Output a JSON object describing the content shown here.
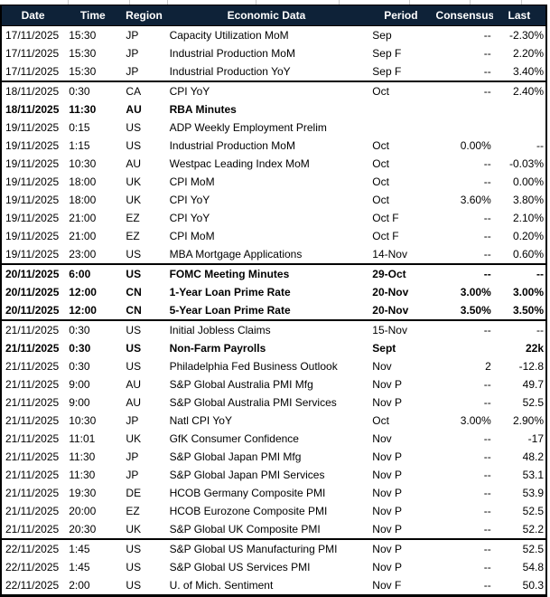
{
  "colors": {
    "header_bg": "#0E2238",
    "header_text": "#FFFFFF",
    "border": "#000000",
    "body_text": "#000000"
  },
  "chart_data": {
    "type": "table",
    "columns": [
      "Date",
      "Time",
      "Region",
      "Economic Data",
      "Period",
      "Consensus",
      "Last"
    ],
    "row_keys": [
      "date",
      "time",
      "region",
      "event",
      "period",
      "consensus",
      "last"
    ],
    "rows": [
      {
        "date": "17/11/2025",
        "time": "15:30",
        "region": "JP",
        "event": "Capacity Utilization MoM",
        "period": "Sep",
        "consensus": "--",
        "last": "-2.30%",
        "bold": false,
        "group_start": false
      },
      {
        "date": "17/11/2025",
        "time": "15:30",
        "region": "JP",
        "event": "Industrial Production MoM",
        "period": "Sep F",
        "consensus": "--",
        "last": "2.20%",
        "bold": false,
        "group_start": false
      },
      {
        "date": "17/11/2025",
        "time": "15:30",
        "region": "JP",
        "event": "Industrial Production YoY",
        "period": "Sep F",
        "consensus": "--",
        "last": "3.40%",
        "bold": false,
        "group_start": false
      },
      {
        "date": "18/11/2025",
        "time": "0:30",
        "region": "CA",
        "event": "CPI YoY",
        "period": "Oct",
        "consensus": "--",
        "last": "2.40%",
        "bold": false,
        "group_start": true
      },
      {
        "date": "18/11/2025",
        "time": "11:30",
        "region": "AU",
        "event": "RBA Minutes",
        "period": "",
        "consensus": "",
        "last": "",
        "bold": true,
        "group_start": false
      },
      {
        "date": "19/11/2025",
        "time": "0:15",
        "region": "US",
        "event": "ADP Weekly Employment Prelim",
        "period": "",
        "consensus": "",
        "last": "",
        "bold": false,
        "group_start": false
      },
      {
        "date": "19/11/2025",
        "time": "1:15",
        "region": "US",
        "event": "Industrial Production MoM",
        "period": "Oct",
        "consensus": "0.00%",
        "last": "--",
        "bold": false,
        "group_start": false
      },
      {
        "date": "19/11/2025",
        "time": "10:30",
        "region": "AU",
        "event": "Westpac Leading Index MoM",
        "period": "Oct",
        "consensus": "--",
        "last": "-0.03%",
        "bold": false,
        "group_start": false
      },
      {
        "date": "19/11/2025",
        "time": "18:00",
        "region": "UK",
        "event": "CPI MoM",
        "period": "Oct",
        "consensus": "--",
        "last": "0.00%",
        "bold": false,
        "group_start": false
      },
      {
        "date": "19/11/2025",
        "time": "18:00",
        "region": "UK",
        "event": "CPI YoY",
        "period": "Oct",
        "consensus": "3.60%",
        "last": "3.80%",
        "bold": false,
        "group_start": false
      },
      {
        "date": "19/11/2025",
        "time": "21:00",
        "region": "EZ",
        "event": "CPI YoY",
        "period": "Oct F",
        "consensus": "--",
        "last": "2.10%",
        "bold": false,
        "group_start": false
      },
      {
        "date": "19/11/2025",
        "time": "21:00",
        "region": "EZ",
        "event": "CPI MoM",
        "period": "Oct F",
        "consensus": "--",
        "last": "0.20%",
        "bold": false,
        "group_start": false
      },
      {
        "date": "19/11/2025",
        "time": "23:00",
        "region": "US",
        "event": "MBA Mortgage Applications",
        "period": "14-Nov",
        "consensus": "--",
        "last": "0.60%",
        "bold": false,
        "group_start": false
      },
      {
        "date": "20/11/2025",
        "time": "6:00",
        "region": "US",
        "event": "FOMC Meeting Minutes",
        "period": "29-Oct",
        "consensus": "--",
        "last": "--",
        "bold": true,
        "group_start": true
      },
      {
        "date": "20/11/2025",
        "time": "12:00",
        "region": "CN",
        "event": "1-Year Loan Prime Rate",
        "period": "20-Nov",
        "consensus": "3.00%",
        "last": "3.00%",
        "bold": true,
        "group_start": false
      },
      {
        "date": "20/11/2025",
        "time": "12:00",
        "region": "CN",
        "event": "5-Year Loan Prime Rate",
        "period": "20-Nov",
        "consensus": "3.50%",
        "last": "3.50%",
        "bold": true,
        "group_start": false
      },
      {
        "date": "21/11/2025",
        "time": "0:30",
        "region": "US",
        "event": "Initial Jobless Claims",
        "period": "15-Nov",
        "consensus": "--",
        "last": "--",
        "bold": false,
        "group_start": true
      },
      {
        "date": "21/11/2025",
        "time": "0:30",
        "region": "US",
        "event": "Non-Farm Payrolls",
        "period": "Sept",
        "consensus": "",
        "last": "22k",
        "bold": true,
        "group_start": false
      },
      {
        "date": "21/11/2025",
        "time": "0:30",
        "region": "US",
        "event": "Philadelphia Fed Business Outlook",
        "period": "Nov",
        "consensus": "2",
        "last": "-12.8",
        "bold": false,
        "group_start": false
      },
      {
        "date": "21/11/2025",
        "time": "9:00",
        "region": "AU",
        "event": "S&P Global Australia PMI Mfg",
        "period": "Nov P",
        "consensus": "--",
        "last": "49.7",
        "bold": false,
        "group_start": false
      },
      {
        "date": "21/11/2025",
        "time": "9:00",
        "region": "AU",
        "event": "S&P Global Australia PMI Services",
        "period": "Nov P",
        "consensus": "--",
        "last": "52.5",
        "bold": false,
        "group_start": false
      },
      {
        "date": "21/11/2025",
        "time": "10:30",
        "region": "JP",
        "event": "Natl CPI YoY",
        "period": "Oct",
        "consensus": "3.00%",
        "last": "2.90%",
        "bold": false,
        "group_start": false
      },
      {
        "date": "21/11/2025",
        "time": "11:01",
        "region": "UK",
        "event": "GfK Consumer Confidence",
        "period": "Nov",
        "consensus": "--",
        "last": "-17",
        "bold": false,
        "group_start": false
      },
      {
        "date": "21/11/2025",
        "time": "11:30",
        "region": "JP",
        "event": "S&P Global Japan PMI Mfg",
        "period": "Nov P",
        "consensus": "--",
        "last": "48.2",
        "bold": false,
        "group_start": false
      },
      {
        "date": "21/11/2025",
        "time": "11:30",
        "region": "JP",
        "event": "S&P Global Japan PMI Services",
        "period": "Nov P",
        "consensus": "--",
        "last": "53.1",
        "bold": false,
        "group_start": false
      },
      {
        "date": "21/11/2025",
        "time": "19:30",
        "region": "DE",
        "event": "HCOB Germany Composite PMI",
        "period": "Nov P",
        "consensus": "--",
        "last": "53.9",
        "bold": false,
        "group_start": false
      },
      {
        "date": "21/11/2025",
        "time": "20:00",
        "region": "EZ",
        "event": "HCOB Eurozone Composite PMI",
        "period": "Nov P",
        "consensus": "--",
        "last": "52.5",
        "bold": false,
        "group_start": false
      },
      {
        "date": "21/11/2025",
        "time": "20:30",
        "region": "UK",
        "event": "S&P Global UK Composite PMI",
        "period": "Nov P",
        "consensus": "--",
        "last": "52.2",
        "bold": false,
        "group_start": false
      },
      {
        "date": "22/11/2025",
        "time": "1:45",
        "region": "US",
        "event": "S&P Global US Manufacturing PMI",
        "period": "Nov P",
        "consensus": "--",
        "last": "52.5",
        "bold": false,
        "group_start": true
      },
      {
        "date": "22/11/2025",
        "time": "1:45",
        "region": "US",
        "event": "S&P Global US Services PMI",
        "period": "Nov P",
        "consensus": "--",
        "last": "54.8",
        "bold": false,
        "group_start": false
      },
      {
        "date": "22/11/2025",
        "time": "2:00",
        "region": "US",
        "event": "U. of Mich. Sentiment",
        "period": "Nov F",
        "consensus": "--",
        "last": "50.3",
        "bold": false,
        "group_start": false
      }
    ]
  }
}
